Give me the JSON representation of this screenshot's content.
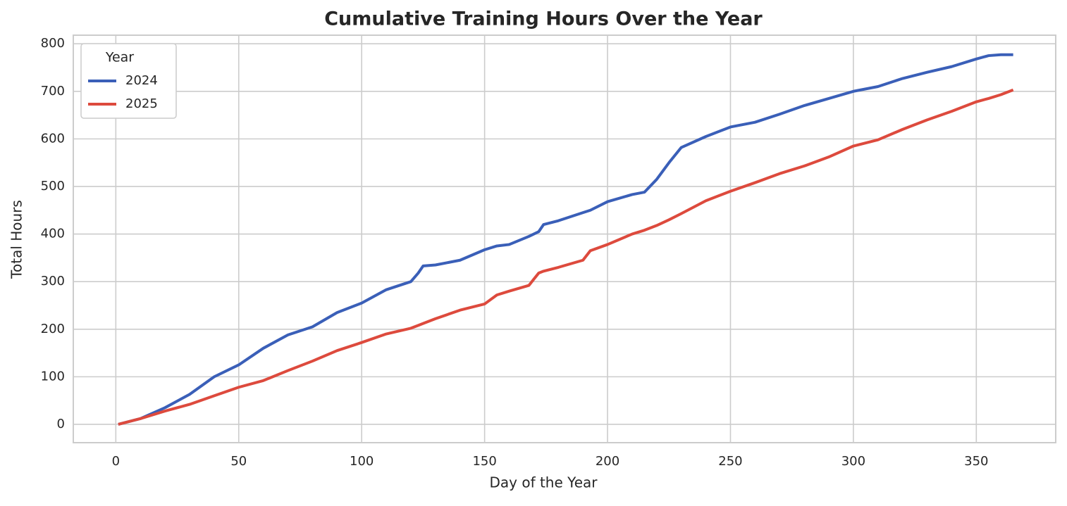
{
  "chart_data": {
    "type": "line",
    "title": "Cumulative Training Hours Over the Year",
    "x_label": "Day of the Year",
    "y_label": "Total Hours",
    "legend_title": "Year",
    "legend": "upper left",
    "grid": true,
    "x": [
      1,
      10,
      20,
      30,
      40,
      50,
      60,
      70,
      80,
      90,
      100,
      110,
      120,
      123,
      125,
      130,
      140,
      150,
      155,
      160,
      168,
      170,
      172,
      174,
      180,
      190,
      193,
      200,
      210,
      215,
      220,
      225,
      230,
      240,
      250,
      260,
      270,
      280,
      290,
      300,
      310,
      320,
      330,
      340,
      350,
      355,
      360,
      365
    ],
    "series": [
      {
        "name": "2024",
        "color": "#3a5fb8",
        "values": [
          0,
          12,
          35,
          63,
          100,
          125,
          160,
          188,
          205,
          235,
          255,
          283,
          300,
          318,
          333,
          335,
          345,
          367,
          375,
          378,
          395,
          400,
          405,
          420,
          428,
          445,
          450,
          468,
          483,
          488,
          515,
          550,
          582,
          605,
          625,
          635,
          652,
          670,
          685,
          700,
          710,
          727,
          740,
          752,
          768,
          775,
          777,
          777
        ]
      },
      {
        "name": "2025",
        "color": "#dd4a3d",
        "values": [
          0,
          12,
          28,
          42,
          60,
          78,
          92,
          113,
          133,
          155,
          172,
          190,
          202,
          208,
          212,
          222,
          240,
          253,
          272,
          280,
          292,
          305,
          318,
          322,
          330,
          345,
          365,
          378,
          400,
          408,
          418,
          430,
          443,
          470,
          490,
          508,
          527,
          543,
          562,
          585,
          598,
          620,
          640,
          658,
          678,
          685,
          693,
          703
        ]
      }
    ],
    "xlim": [
      -17.3,
      382.3
    ],
    "xticks": [
      0,
      50,
      100,
      150,
      200,
      250,
      300,
      350
    ],
    "ylim": [
      -38.5,
      818
    ],
    "yticks": [
      0,
      100,
      200,
      300,
      400,
      500,
      600,
      700,
      800
    ]
  }
}
